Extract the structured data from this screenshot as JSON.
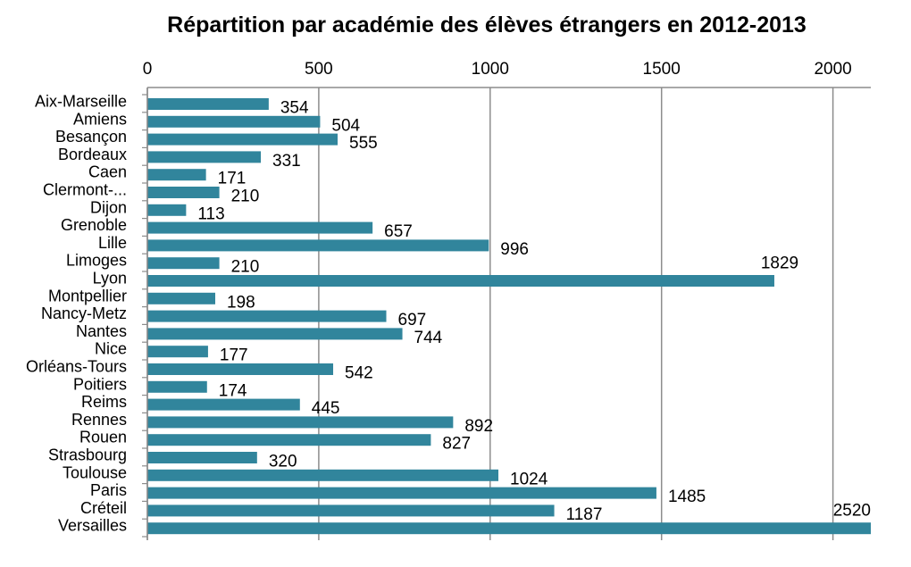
{
  "chart_data": {
    "type": "bar",
    "orientation": "horizontal",
    "title": "Répartition par académie des élèves étrangers en 2012-2013",
    "xlabel": "",
    "ylabel": "",
    "xlim": [
      0,
      2100
    ],
    "x_ticks": [
      "0",
      "500",
      "1000",
      "1500",
      "2000"
    ],
    "x_tick_values": [
      0,
      500,
      1000,
      1500,
      2000
    ],
    "grid": true,
    "bar_color": "#31859C",
    "categories": [
      "Aix-Marseille",
      "Amiens",
      "Besançon",
      "Bordeaux",
      "Caen",
      "Clermont-...",
      "Dijon",
      "Grenoble",
      "Lille",
      "Limoges",
      "Lyon",
      "Montpellier",
      "Nancy-Metz",
      "Nantes",
      "Nice",
      "Orléans-Tours",
      "Poitiers",
      "Reims",
      "Rennes",
      "Rouen",
      "Strasbourg",
      "Toulouse",
      "Paris",
      "Créteil",
      "Versailles"
    ],
    "values": [
      354,
      504,
      555,
      331,
      171,
      210,
      113,
      657,
      996,
      210,
      1829,
      198,
      697,
      744,
      177,
      542,
      174,
      445,
      892,
      827,
      320,
      1024,
      1485,
      1187,
      2520
    ],
    "value_labels": [
      "354",
      "504",
      "555",
      "331",
      "171",
      "210",
      "113",
      "657",
      "996",
      "210",
      "1829",
      "198",
      "697",
      "744",
      "177",
      "542",
      "174",
      "445",
      "892",
      "827",
      "320",
      "1024",
      "1485",
      "1187",
      "2520"
    ]
  }
}
